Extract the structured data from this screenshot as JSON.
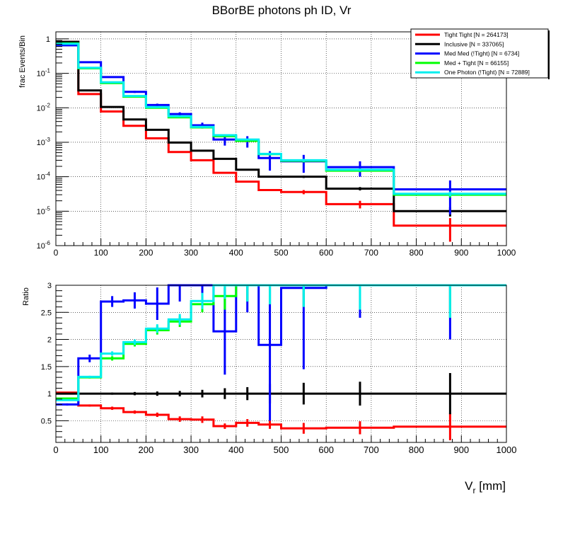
{
  "chart_data": [
    {
      "type": "step",
      "title": "BBorBE photons ph ID, Vr",
      "ylabel": "frac Events/Bin",
      "xlabel": "",
      "yscale": "log",
      "xlim": [
        0,
        1000
      ],
      "ylim": [
        1e-06,
        1.6
      ],
      "grid": true,
      "legend_position": "top-right",
      "bin_edges": [
        0,
        50,
        100,
        150,
        200,
        250,
        300,
        350,
        400,
        450,
        500,
        600,
        750,
        1000
      ],
      "x_ticks": [
        "0",
        "100",
        "200",
        "300",
        "400",
        "500",
        "600",
        "700",
        "800",
        "900",
        "1000"
      ],
      "y_ticks": [
        {
          "base": "10",
          "exp": "-6",
          "value": 1e-06
        },
        {
          "base": "10",
          "exp": "-5",
          "value": 1e-05
        },
        {
          "base": "10",
          "exp": "-4",
          "value": 0.0001
        },
        {
          "base": "10",
          "exp": "-3",
          "value": 0.001
        },
        {
          "base": "10",
          "exp": "-2",
          "value": 0.01
        },
        {
          "base": "10",
          "exp": "-1",
          "value": 0.1
        },
        {
          "base": "1",
          "exp": "",
          "value": 1
        }
      ],
      "series": [
        {
          "name": "Tight Tight [N = 264173]",
          "color": "#ff0000",
          "values": [
            0.82,
            0.025,
            0.0078,
            0.003,
            0.0013,
            0.00052,
            0.0003,
            0.00013,
            7.2e-05,
            4.1e-05,
            3.6e-05,
            1.6e-05,
            3.8e-06
          ],
          "errors": [
            0.002,
            0.0003,
            8e-05,
            4e-05,
            2e-05,
            1e-05,
            8e-06,
            4e-06,
            3e-06,
            2.5e-06,
            5e-06,
            4e-06,
            2.5e-06
          ]
        },
        {
          "name": "Inclusive [N = 337065]",
          "color": "#000000",
          "values": [
            0.82,
            0.032,
            0.0106,
            0.0046,
            0.0023,
            0.00098,
            0.00057,
            0.00033,
            0.00016,
            0.0001,
            0.0001,
            4.5e-05,
            1e-05
          ],
          "errors": [
            0.002,
            0.0003,
            0.0001,
            5e-05,
            3e-05,
            2e-05,
            1e-05,
            8e-06,
            5e-06,
            4e-06,
            8e-06,
            5e-06,
            3e-06
          ]
        },
        {
          "name": "Med Med (!Tight) [N = 6734]",
          "color": "#0000ff",
          "values": [
            0.65,
            0.21,
            0.078,
            0.029,
            0.012,
            0.0066,
            0.0031,
            0.0012,
            0.0011,
            0.00035,
            0.00028,
            0.00019,
            4.3e-05
          ],
          "errors": [
            0.01,
            0.01,
            0.004,
            0.002,
            0.0012,
            0.0008,
            0.0006,
            0.0004,
            0.0004,
            0.0002,
            0.00015,
            9e-05,
            3.5e-05
          ]
        },
        {
          "name": "Med + Tight [N = 66155]",
          "color": "#00ff00",
          "values": [
            0.74,
            0.14,
            0.052,
            0.021,
            0.01,
            0.0053,
            0.0027,
            0.0015,
            0.0011,
            0.00045,
            0.00029,
            0.00015,
            3e-05
          ],
          "errors": [
            0.004,
            0.002,
            0.0008,
            0.0004,
            0.00025,
            0.00015,
            0.0001,
            8e-05,
            7e-05,
            4e-05,
            3e-05,
            1.5e-05,
            5e-06
          ]
        },
        {
          "name": "One Photon (!Tight) [N = 72889]",
          "color": "#00eeee",
          "values": [
            0.72,
            0.145,
            0.055,
            0.022,
            0.0105,
            0.0057,
            0.0028,
            0.0016,
            0.0012,
            0.00046,
            0.0003,
            0.00016,
            3.2e-05
          ],
          "errors": [
            0.004,
            0.002,
            0.0008,
            0.0004,
            0.00025,
            0.00015,
            0.0001,
            8e-05,
            7e-05,
            4e-05,
            3e-05,
            1.5e-05,
            5e-06
          ]
        }
      ]
    },
    {
      "type": "step",
      "title": "",
      "ylabel": "Ratio",
      "xlabel": "V_r [mm]",
      "xlabel_main": "V",
      "xlabel_sub": "r",
      "xlabel_unit": " [mm]",
      "yscale": "linear",
      "xlim": [
        0,
        1000
      ],
      "ylim": [
        0.1,
        3
      ],
      "grid": true,
      "bin_edges": [
        0,
        50,
        100,
        150,
        200,
        250,
        300,
        350,
        400,
        450,
        500,
        600,
        750,
        1000
      ],
      "x_ticks": [
        "0",
        "100",
        "200",
        "300",
        "400",
        "500",
        "600",
        "700",
        "800",
        "900",
        "1000"
      ],
      "y_ticks": [
        {
          "label": "0.5",
          "value": 0.5
        },
        {
          "label": "1",
          "value": 1
        },
        {
          "label": "1.5",
          "value": 1.5
        },
        {
          "label": "2",
          "value": 2
        },
        {
          "label": "2.5",
          "value": 2.5
        },
        {
          "label": "3",
          "value": 3
        }
      ],
      "series": [
        {
          "name": "Tight Tight [N = 264173]",
          "color": "#ff0000",
          "values": [
            1.02,
            0.78,
            0.73,
            0.66,
            0.61,
            0.53,
            0.52,
            0.4,
            0.46,
            0.43,
            0.36,
            0.37,
            0.39
          ],
          "errors": [
            0.01,
            0.02,
            0.03,
            0.03,
            0.04,
            0.05,
            0.06,
            0.05,
            0.07,
            0.08,
            0.1,
            0.12,
            0.25
          ]
        },
        {
          "name": "Inclusive [N = 337065]",
          "color": "#000000",
          "values": [
            1,
            1,
            1,
            1,
            1,
            1,
            1,
            1,
            1,
            1,
            1,
            1,
            1
          ],
          "errors": [
            0.005,
            0.01,
            0.02,
            0.03,
            0.04,
            0.05,
            0.07,
            0.1,
            0.12,
            0.18,
            0.2,
            0.22,
            0.38
          ]
        },
        {
          "name": "Med Med (!Tight) [N = 6734]",
          "color": "#0000ff",
          "values": [
            0.8,
            1.65,
            2.7,
            2.72,
            2.66,
            3.0,
            3.0,
            2.15,
            3.0,
            1.9,
            2.95,
            3.0,
            3.0
          ],
          "errors": [
            0.02,
            0.07,
            0.1,
            0.15,
            0.3,
            0.3,
            0.4,
            0.8,
            0.5,
            1.4,
            1.5,
            0.6,
            1.0
          ]
        },
        {
          "name": "Med + Tight [N = 66155]",
          "color": "#00ff00",
          "values": [
            0.91,
            1.3,
            1.65,
            1.92,
            2.17,
            2.33,
            2.65,
            2.8,
            3.0,
            3.0,
            3.0,
            3.0,
            3.0
          ],
          "errors": [
            0.01,
            0.02,
            0.04,
            0.05,
            0.08,
            0.1,
            0.15,
            0.25,
            0.3,
            0.35,
            0.4,
            0.45,
            0.6
          ]
        },
        {
          "name": "One Photon (!Tight) [N = 72889]",
          "color": "#00eeee",
          "values": [
            0.88,
            1.31,
            1.74,
            1.95,
            2.2,
            2.37,
            2.71,
            3.0,
            3.0,
            3.0,
            3.0,
            3.0,
            3.0
          ],
          "errors": [
            0.01,
            0.02,
            0.04,
            0.05,
            0.08,
            0.1,
            0.15,
            0.25,
            0.3,
            0.35,
            0.4,
            0.45,
            0.6
          ]
        }
      ]
    }
  ]
}
